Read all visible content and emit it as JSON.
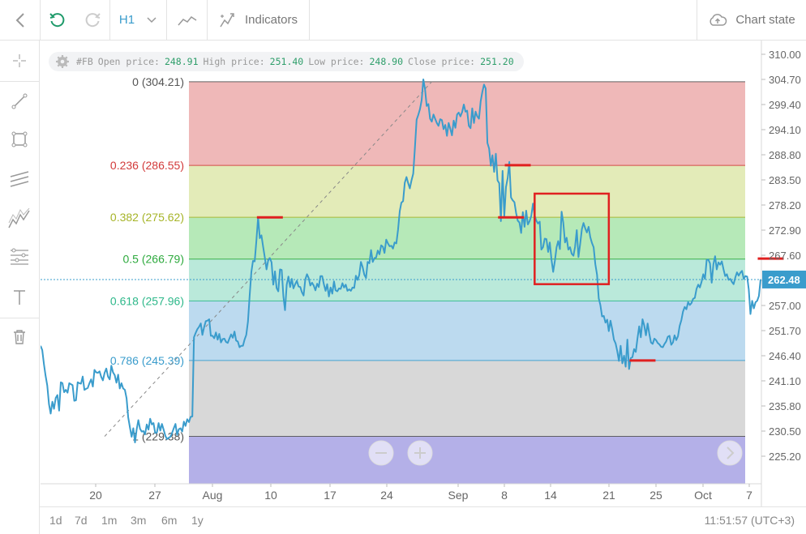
{
  "toolbar": {
    "timeframe": "H1",
    "indicators_label": "Indicators",
    "chart_state_label": "Chart state"
  },
  "ohlc": {
    "symbol": "#FB",
    "open_label": "Open price:",
    "open": "248.91",
    "high_label": "High price:",
    "high": "251.40",
    "low_label": "Low price:",
    "low": "248.90",
    "close_label": "Close price:",
    "close": "251.20"
  },
  "bottom": {
    "timeframes": [
      "1d",
      "7d",
      "1m",
      "3m",
      "6m",
      "1y"
    ],
    "clock": "11:51:57 (UTC+3)"
  },
  "colors": {
    "price_line": "#3a9ccc",
    "current_price_bg": "#3a9ccc",
    "marker_red": "#e02020",
    "fib_zones": [
      "#eeb4b4",
      "#e2eab4",
      "#b2e8b4",
      "#b6e8d8",
      "#b8d8ee",
      "#d6d6d6",
      "#b4b0e8"
    ],
    "fib_label_colors": [
      "#555555",
      "#d23a3a",
      "#a6b428",
      "#2eaa3e",
      "#2eb88a",
      "#3a9ccc",
      "#555555"
    ]
  },
  "chart_data": {
    "type": "line",
    "symbol": "#FB",
    "timeframe": "H1",
    "current_price": "262.48",
    "ylim": [
      224,
      312
    ],
    "y_ticks": [
      "310.00",
      "304.70",
      "299.40",
      "294.10",
      "288.80",
      "283.50",
      "278.20",
      "272.90",
      "267.60",
      "262.30",
      "257.00",
      "251.70",
      "246.40",
      "241.10",
      "235.80",
      "230.50",
      "225.20"
    ],
    "x_ticks": [
      "20",
      "27",
      "Aug",
      "10",
      "17",
      "24",
      "Sep",
      "8",
      "14",
      "21",
      "25",
      "Oct",
      "7"
    ],
    "fibonacci": {
      "levels": [
        {
          "label": "0 (304.21)",
          "ratio": 0,
          "price": 304.21
        },
        {
          "label": "0.236 (286.55)",
          "ratio": 0.236,
          "price": 286.55
        },
        {
          "label": "0.382 (275.62)",
          "ratio": 0.382,
          "price": 275.62
        },
        {
          "label": "0.5 (266.79)",
          "ratio": 0.5,
          "price": 266.79
        },
        {
          "label": "0.618 (257.96)",
          "ratio": 0.618,
          "price": 257.96
        },
        {
          "label": "0.786 (245.39)",
          "ratio": 0.786,
          "price": 245.39
        },
        {
          "label": "1 (229.38)",
          "ratio": 1,
          "price": 229.38
        }
      ],
      "from": {
        "index": 38,
        "price": 229.38
      },
      "to": {
        "index": 232,
        "price": 304.21
      }
    },
    "series": [
      {
        "values": [
          248.5,
          247.6,
          244.6,
          242.2,
          240.1,
          236.2,
          234.2,
          236.7,
          235.2,
          237.5,
          238.1,
          234.8,
          240.8,
          240.6,
          238.7,
          239.2,
          238.6,
          240.6,
          240.4,
          240.2,
          236.9,
          237.0,
          240.8,
          240.6,
          240.5,
          242.0,
          239.2,
          239.4,
          239.6,
          240.6,
          241.4,
          239.9,
          243.4,
          242.9,
          242.8,
          243.1,
          241.9,
          241.2,
          242.8,
          243.7,
          242.0,
          241.4,
          244.3,
          242.9,
          242.3,
          240.7,
          242.4,
          239.5,
          240.6,
          239.5,
          239.2,
          237.4,
          233.4,
          231.3,
          229.3,
          231.1,
          228.1,
          230.8,
          232.8,
          231.0,
          230.4,
          230.5,
          229.8,
          231.9,
          230.8,
          233.1,
          231.9,
          232.2,
          230.1,
          230.2,
          232.2,
          230.6,
          232.0,
          230.8,
          229.5,
          228.8,
          229.1,
          229.3,
          230.1,
          231.1,
          232.0,
          229.7,
          230.9,
          231.1,
          230.4,
          232.5,
          231.6,
          233.0,
          232.4,
          233.5,
          233.6,
          250.3,
          251.2,
          252.0,
          252.5,
          253.2,
          250.8,
          252.4,
          253.7,
          253.8,
          254.1,
          250.6,
          250.6,
          250.1,
          251.3,
          249.8,
          251.0,
          249.2,
          249.9,
          250.0,
          249.3,
          249.1,
          250.0,
          250.9,
          250.2,
          251.5,
          249.6,
          249.4,
          248.2,
          248.5,
          248.5,
          249.8,
          250.8,
          253.6,
          259.1,
          264.1,
          266.4,
          266.3,
          270.7,
          275.6,
          271.2,
          271.8,
          269.4,
          267.1,
          264.6,
          266.5,
          267.0,
          266.1,
          261.4,
          264.2,
          260.7,
          260.0,
          264.6,
          264.5,
          258.9,
          256.0,
          261.4,
          263.1,
          260.9,
          262.6,
          260.6,
          261.5,
          262.2,
          261.0,
          260.9,
          259.8,
          259.1,
          262.5,
          263.6,
          262.8,
          261.2,
          261.8,
          261.2,
          260.2,
          261.6,
          260.9,
          263.2,
          263.2,
          261.5,
          260.1,
          261.5,
          258.9,
          260.8,
          259.5,
          262.1,
          260.2,
          260.0,
          260.6,
          260.5,
          261.7,
          260.8,
          261.4,
          260.1,
          260.4,
          260.1,
          260.8,
          260.7,
          263.3,
          262.4,
          263.4,
          266.2,
          265.1,
          263.5,
          262.8,
          266.2,
          265.9,
          268.7,
          266.2,
          267.0,
          267.1,
          268.6,
          267.8,
          269.7,
          269.4,
          268.1,
          270.9,
          270.1,
          269.5,
          269.6,
          269.0,
          270.3,
          270.1,
          273.0,
          276.9,
          278.7,
          279.0,
          282.9,
          284.1,
          282.8,
          281.7,
          283.4,
          284.8,
          290.3,
          296.2,
          297.2,
          298.4,
          300.3,
          304.7,
          302.6,
          299.1,
          299.5,
          296.4,
          295.8,
          297.3,
          296.4,
          295.5,
          294.9,
          296.3,
          296.1,
          294.2,
          295.1,
          292.8,
          295.5,
          294.3,
          292.9,
          296.0,
          294.5,
          297.3,
          297.7,
          296.9,
          297.8,
          299.4,
          297.9,
          298.1,
          294.9,
          294.4,
          298.6,
          295.5,
          297.9,
          296.9,
          296.4,
          300.1,
          302.1,
          303.6,
          302.8,
          291.3,
          290.1,
          286.5,
          288.7,
          285.2,
          289.0,
          283.4,
          282.8,
          274.8,
          285.4,
          275.8,
          282.0,
          283.9,
          287.3,
          279.8,
          279.2,
          278.8,
          276.5,
          274.9,
          274.5,
          272.3,
          276.7,
          273.6,
          277.0,
          274.1,
          274.8,
          275.9,
          278.5,
          276.0,
          274.9,
          274.3,
          274.7,
          268.8,
          269.3,
          271.1,
          271.0,
          268.3,
          270.3,
          266.7,
          264.1,
          266.4,
          269.3,
          270.6,
          268.9,
          276.8,
          274.4,
          270.3,
          271.3,
          268.8,
          269.3,
          267.9,
          267.5,
          269.4,
          272.9,
          267.2,
          270.0,
          273.1,
          274.4,
          273.3,
          272.4,
          273.6,
          271.4,
          270.2,
          269.3,
          265.7,
          263.5,
          258.5,
          257.1,
          254.7,
          254.8,
          253.4,
          254.0,
          251.6,
          253.8,
          252.0,
          249.8,
          249.0,
          247.4,
          245.3,
          248.5,
          244.8,
          246.4,
          244.1,
          249.8,
          243.6,
          245.9,
          246.1,
          247.8,
          247.2,
          250.1,
          252.6,
          250.3,
          254.1,
          252.8,
          250.7,
          253.2,
          251.1,
          249.2,
          248.9,
          250.0,
          249.7,
          249.1,
          248.8,
          248.3,
          248.2,
          248.9,
          249.4,
          250.4,
          250.6,
          248.7,
          249.2,
          250.7,
          249.7,
          250.5,
          252.7,
          253.9,
          255.7,
          256.7,
          256.2,
          257.7,
          257.1,
          257.5,
          258.4,
          258.6,
          260.5,
          261.4,
          260.8,
          262.0,
          263.6,
          262.6,
          266.6,
          266.7,
          265.9,
          261.8,
          265.7,
          267.4,
          264.6,
          266.1,
          265.6,
          266.3,
          264.7,
          263.2,
          263.6,
          262.4,
          262.6,
          262.0,
          261.5,
          262.9,
          264.0,
          263.3,
          263.9,
          264.3,
          262.6,
          263.2,
          263.1,
          260.4,
          255.2,
          258.0,
          256.4,
          257.7,
          258.0,
          259.0,
          262.5
        ]
      }
    ],
    "markers": [
      {
        "index": 136,
        "price": 275.6,
        "color": "#e02020"
      },
      {
        "index": 283,
        "price": 286.6,
        "color": "#e02020"
      },
      {
        "index": 279,
        "price": 275.6,
        "color": "#e02020"
      },
      {
        "index": 357,
        "price": 245.4,
        "color": "#e02020"
      },
      {
        "index": 433,
        "price": 266.9,
        "color": "#e02020"
      }
    ],
    "highlight_box": {
      "x_range": [
        293,
        337
      ],
      "y_range": [
        261.5,
        280.6
      ],
      "color": "#e02020"
    }
  }
}
